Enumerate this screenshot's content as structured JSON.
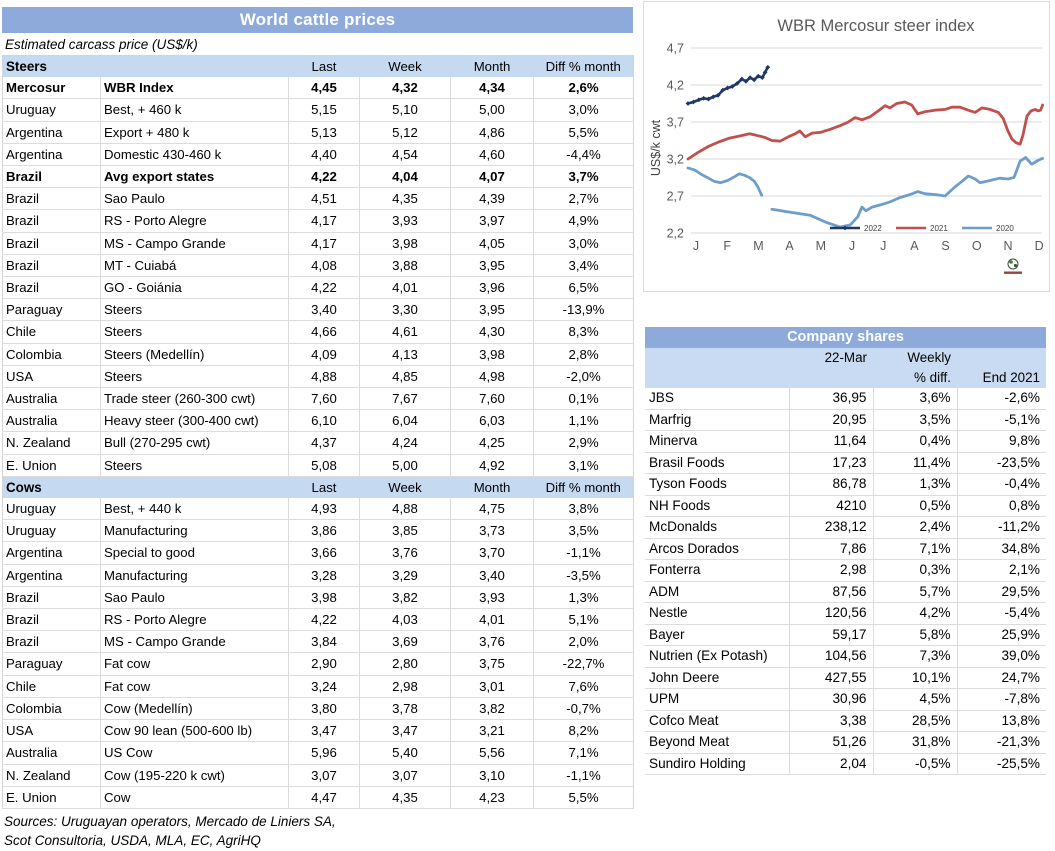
{
  "colors": {
    "title_bar": "#8EAADB",
    "section_header": "#C5D9F0",
    "company_subheader": "#C9DBF2",
    "grid_line": "#DCDCDC",
    "chart_axis_text": "#595959",
    "series_2022": "#1F3864",
    "series_2021": "#C0504D",
    "series_2020": "#6D9DCB"
  },
  "left_table": {
    "title": "World cattle prices",
    "subtitle": "Estimated carcass price (US$/k)",
    "columns": [
      "Last",
      "Week",
      "Month",
      "Diff % month"
    ],
    "sections": [
      {
        "label": "Steers",
        "rows": [
          {
            "country": "Mercosur",
            "desc": "WBR Index",
            "last": "4,45",
            "week": "4,32",
            "month": "4,34",
            "diff": "2,6%",
            "bold": true
          },
          {
            "country": "Uruguay",
            "desc": "Best, + 460 k",
            "last": "5,15",
            "week": "5,10",
            "month": "5,00",
            "diff": "3,0%",
            "bold": false
          },
          {
            "country": "Argentina",
            "desc": "Export + 480 k",
            "last": "5,13",
            "week": "5,12",
            "month": "4,86",
            "diff": "5,5%",
            "bold": false
          },
          {
            "country": "Argentina",
            "desc": "Domestic 430-460 k",
            "last": "4,40",
            "week": "4,54",
            "month": "4,60",
            "diff": "-4,4%",
            "bold": false
          },
          {
            "country": "Brazil",
            "desc": "Avg export states",
            "last": "4,22",
            "week": "4,04",
            "month": "4,07",
            "diff": "3,7%",
            "bold": true
          },
          {
            "country": "Brazil",
            "desc": "Sao Paulo",
            "last": "4,51",
            "week": "4,35",
            "month": "4,39",
            "diff": "2,7%",
            "bold": false
          },
          {
            "country": "Brazil",
            "desc": "RS - Porto Alegre",
            "last": "4,17",
            "week": "3,93",
            "month": "3,97",
            "diff": "4,9%",
            "bold": false
          },
          {
            "country": "Brazil",
            "desc": "MS - Campo Grande",
            "last": "4,17",
            "week": "3,98",
            "month": "4,05",
            "diff": "3,0%",
            "bold": false
          },
          {
            "country": "Brazil",
            "desc": "MT - Cuiabá",
            "last": "4,08",
            "week": "3,88",
            "month": "3,95",
            "diff": "3,4%",
            "bold": false
          },
          {
            "country": "Brazil",
            "desc": "GO - Goiánia",
            "last": "4,22",
            "week": "4,01",
            "month": "3,96",
            "diff": "6,5%",
            "bold": false
          },
          {
            "country": "Paraguay",
            "desc": "Steers",
            "last": "3,40",
            "week": "3,30",
            "month": "3,95",
            "diff": "-13,9%",
            "bold": false
          },
          {
            "country": "Chile",
            "desc": "Steers",
            "last": "4,66",
            "week": "4,61",
            "month": "4,30",
            "diff": "8,3%",
            "bold": false
          },
          {
            "country": "Colombia",
            "desc": "Steers (Medellín)",
            "last": "4,09",
            "week": "4,13",
            "month": "3,98",
            "diff": "2,8%",
            "bold": false
          },
          {
            "country": "USA",
            "desc": "Steers",
            "last": "4,88",
            "week": "4,85",
            "month": "4,98",
            "diff": "-2,0%",
            "bold": false
          },
          {
            "country": "Australia",
            "desc": "Trade steer (260-300 cwt)",
            "last": "7,60",
            "week": "7,67",
            "month": "7,60",
            "diff": "0,1%",
            "bold": false
          },
          {
            "country": "Australia",
            "desc": "Heavy steer (300-400 cwt)",
            "last": "6,10",
            "week": "6,04",
            "month": "6,03",
            "diff": "1,1%",
            "bold": false
          },
          {
            "country": "N. Zealand",
            "desc": "Bull (270-295 cwt)",
            "last": "4,37",
            "week": "4,24",
            "month": "4,25",
            "diff": "2,9%",
            "bold": false
          },
          {
            "country": "E. Union",
            "desc": "Steers",
            "last": "5,08",
            "week": "5,00",
            "month": "4,92",
            "diff": "3,1%",
            "bold": false
          }
        ]
      },
      {
        "label": "Cows",
        "rows": [
          {
            "country": "Uruguay",
            "desc": "Best, + 440 k",
            "last": "4,93",
            "week": "4,88",
            "month": "4,75",
            "diff": "3,8%",
            "bold": false
          },
          {
            "country": "Uruguay",
            "desc": "Manufacturing",
            "last": "3,86",
            "week": "3,85",
            "month": "3,73",
            "diff": "3,5%",
            "bold": false
          },
          {
            "country": "Argentina",
            "desc": "Special to good",
            "last": "3,66",
            "week": "3,76",
            "month": "3,70",
            "diff": "-1,1%",
            "bold": false
          },
          {
            "country": "Argentina",
            "desc": "Manufacturing",
            "last": "3,28",
            "week": "3,29",
            "month": "3,40",
            "diff": "-3,5%",
            "bold": false
          },
          {
            "country": "Brazil",
            "desc": "Sao Paulo",
            "last": "3,98",
            "week": "3,82",
            "month": "3,93",
            "diff": "1,3%",
            "bold": false
          },
          {
            "country": "Brazil",
            "desc": "RS - Porto Alegre",
            "last": "4,22",
            "week": "4,03",
            "month": "4,01",
            "diff": "5,1%",
            "bold": false
          },
          {
            "country": "Brazil",
            "desc": "MS - Campo Grande",
            "last": "3,84",
            "week": "3,69",
            "month": "3,76",
            "diff": "2,0%",
            "bold": false
          },
          {
            "country": "Paraguay",
            "desc": "Fat cow",
            "last": "2,90",
            "week": "2,80",
            "month": "3,75",
            "diff": "-22,7%",
            "bold": false
          },
          {
            "country": "Chile",
            "desc": "Fat cow",
            "last": "3,24",
            "week": "2,98",
            "month": "3,01",
            "diff": "7,6%",
            "bold": false
          },
          {
            "country": "Colombia",
            "desc": "Cow (Medellín)",
            "last": "3,80",
            "week": "3,78",
            "month": "3,82",
            "diff": "-0,7%",
            "bold": false
          },
          {
            "country": "USA",
            "desc": "Cow 90 lean (500-600 lb)",
            "last": "3,47",
            "week": "3,47",
            "month": "3,21",
            "diff": "8,2%",
            "bold": false
          },
          {
            "country": "Australia",
            "desc": "US Cow",
            "last": "5,96",
            "week": "5,40",
            "month": "5,56",
            "diff": "7,1%",
            "bold": false
          },
          {
            "country": "N. Zealand",
            "desc": "Cow (195-220 k cwt)",
            "last": "3,07",
            "week": "3,07",
            "month": "3,10",
            "diff": "-1,1%",
            "bold": false
          },
          {
            "country": "E. Union",
            "desc": "Cow",
            "last": "4,47",
            "week": "4,35",
            "month": "4,23",
            "diff": "5,5%",
            "bold": false
          }
        ]
      }
    ],
    "sources_line1": "Sources: Uruguayan operators, Mercado de Liniers SA,",
    "sources_line2": "Scot Consultoria, USDA, MLA, EC, AgriHQ"
  },
  "chart_data": {
    "type": "line",
    "title": "WBR Mercosur steer index",
    "ylabel": "US$/k cwt",
    "ylim": [
      2.2,
      4.7
    ],
    "yticks": [
      "2,2",
      "2,7",
      "3,2",
      "3,7",
      "4,2",
      "4,7"
    ],
    "ytick_values": [
      2.2,
      2.7,
      3.2,
      3.7,
      4.2,
      4.7
    ],
    "x_months": [
      "J",
      "F",
      "M",
      "A",
      "M",
      "J",
      "J",
      "A",
      "S",
      "O",
      "N",
      "D"
    ],
    "x_unit": "week of year (0-52)",
    "grid": true,
    "legend_position": "inside-bottom-right",
    "series": [
      {
        "name": "2022",
        "color": "#1F3864",
        "marker": true,
        "width": 2.6,
        "segments": [
          [
            [
              0,
              3.95
            ],
            [
              0.8,
              3.97
            ],
            [
              1.6,
              4.0
            ],
            [
              2.3,
              4.02
            ],
            [
              3,
              4.01
            ],
            [
              3.7,
              4.04
            ],
            [
              4.4,
              4.06
            ],
            [
              5.1,
              4.13
            ],
            [
              5.8,
              4.16
            ],
            [
              6.5,
              4.18
            ],
            [
              7.2,
              4.22
            ],
            [
              7.9,
              4.28
            ],
            [
              8.5,
              4.25
            ],
            [
              9.1,
              4.3
            ],
            [
              9.7,
              4.27
            ],
            [
              10.3,
              4.32
            ],
            [
              10.9,
              4.3
            ],
            [
              11.3,
              4.37
            ],
            [
              11.7,
              4.44
            ]
          ]
        ]
      },
      {
        "name": "2021",
        "color": "#C0504D",
        "marker": false,
        "width": 2.8,
        "segments": [
          [
            [
              0,
              3.2
            ],
            [
              1.5,
              3.29
            ],
            [
              3,
              3.37
            ],
            [
              4.5,
              3.43
            ],
            [
              6,
              3.48
            ],
            [
              7.5,
              3.51
            ],
            [
              9,
              3.54
            ],
            [
              10,
              3.52
            ],
            [
              11.3,
              3.49
            ],
            [
              12.3,
              3.45
            ],
            [
              13.5,
              3.44
            ],
            [
              14.7,
              3.5
            ],
            [
              15.7,
              3.54
            ],
            [
              16.4,
              3.58
            ],
            [
              17.2,
              3.5
            ],
            [
              18.2,
              3.55
            ],
            [
              19.4,
              3.56
            ],
            [
              20.8,
              3.6
            ],
            [
              22.3,
              3.65
            ],
            [
              23.5,
              3.7
            ],
            [
              24.5,
              3.76
            ],
            [
              25.5,
              3.73
            ],
            [
              26.7,
              3.77
            ],
            [
              27.9,
              3.85
            ],
            [
              28.9,
              3.92
            ],
            [
              29.6,
              3.89
            ],
            [
              30.6,
              3.95
            ],
            [
              31.8,
              3.97
            ],
            [
              32.8,
              3.93
            ],
            [
              33.7,
              3.81
            ],
            [
              34.8,
              3.84
            ],
            [
              36.2,
              3.86
            ],
            [
              37.7,
              3.87
            ],
            [
              38.7,
              3.9
            ],
            [
              39.9,
              3.9
            ],
            [
              41.1,
              3.86
            ],
            [
              42.1,
              3.83
            ],
            [
              43.1,
              3.89
            ],
            [
              44.3,
              3.87
            ],
            [
              45.5,
              3.83
            ],
            [
              46.2,
              3.75
            ],
            [
              46.9,
              3.58
            ],
            [
              47.5,
              3.47
            ],
            [
              48.1,
              3.42
            ],
            [
              48.7,
              3.4
            ],
            [
              49.1,
              3.52
            ],
            [
              49.7,
              3.78
            ],
            [
              50.3,
              3.85
            ],
            [
              50.9,
              3.87
            ],
            [
              51.3,
              3.85
            ],
            [
              51.7,
              3.86
            ],
            [
              52,
              3.93
            ]
          ]
        ]
      },
      {
        "name": "2020",
        "color": "#6D9DCB",
        "marker": false,
        "width": 2.8,
        "segments": [
          [
            [
              0,
              3.08
            ],
            [
              1,
              3.05
            ],
            [
              2,
              2.99
            ],
            [
              3,
              2.94
            ],
            [
              3.8,
              2.9
            ],
            [
              4.8,
              2.88
            ],
            [
              5.8,
              2.91
            ],
            [
              6.8,
              2.96
            ],
            [
              7.5,
              3.0
            ],
            [
              8.3,
              2.98
            ],
            [
              9,
              2.95
            ],
            [
              9.7,
              2.9
            ],
            [
              10.2,
              2.83
            ],
            [
              10.8,
              2.71
            ]
          ],
          [
            [
              12.3,
              2.52
            ],
            [
              15,
              2.48
            ],
            [
              17.9,
              2.44
            ],
            [
              20.1,
              2.35
            ],
            [
              22.3,
              2.28
            ],
            [
              23.8,
              2.31
            ],
            [
              24.9,
              2.42
            ],
            [
              25.5,
              2.55
            ],
            [
              26.1,
              2.5
            ],
            [
              27,
              2.55
            ],
            [
              28.2,
              2.58
            ],
            [
              29.6,
              2.62
            ],
            [
              31.1,
              2.68
            ],
            [
              32.6,
              2.72
            ],
            [
              33.7,
              2.76
            ],
            [
              34.8,
              2.73
            ],
            [
              36.2,
              2.72
            ],
            [
              37.7,
              2.7
            ],
            [
              39.1,
              2.82
            ],
            [
              40.2,
              2.9
            ],
            [
              41.1,
              2.97
            ],
            [
              42.1,
              2.93
            ],
            [
              42.8,
              2.88
            ],
            [
              44.3,
              2.91
            ],
            [
              45.7,
              2.94
            ],
            [
              46.9,
              2.93
            ],
            [
              47.8,
              2.95
            ],
            [
              48.7,
              3.17
            ],
            [
              49.5,
              3.22
            ],
            [
              50.4,
              3.13
            ],
            [
              51.3,
              3.18
            ],
            [
              52,
              3.21
            ]
          ]
        ]
      }
    ],
    "footer_icon": "globe-logo"
  },
  "company_table": {
    "title": "Company shares",
    "header": {
      "date": "22-Mar",
      "weekly_line1": "Weekly",
      "weekly_line2": "% diff.",
      "end": "End 2021"
    },
    "rows": [
      {
        "name": "JBS",
        "price": "36,95",
        "weekly": "3,6%",
        "end": "-2,6%"
      },
      {
        "name": "Marfrig",
        "price": "20,95",
        "weekly": "3,5%",
        "end": "-5,1%"
      },
      {
        "name": "Minerva",
        "price": "11,64",
        "weekly": "0,4%",
        "end": "9,8%"
      },
      {
        "name": "Brasil Foods",
        "price": "17,23",
        "weekly": "11,4%",
        "end": "-23,5%"
      },
      {
        "name": "Tyson Foods",
        "price": "86,78",
        "weekly": "1,3%",
        "end": "-0,4%"
      },
      {
        "name": "NH Foods",
        "price": "4210",
        "weekly": "0,5%",
        "end": "0,8%"
      },
      {
        "name": "McDonalds",
        "price": "238,12",
        "weekly": "2,4%",
        "end": "-11,2%"
      },
      {
        "name": "Arcos Dorados",
        "price": "7,86",
        "weekly": "7,1%",
        "end": "34,8%"
      },
      {
        "name": "Fonterra",
        "price": "2,98",
        "weekly": "0,3%",
        "end": "2,1%"
      },
      {
        "name": "ADM",
        "price": "87,56",
        "weekly": "5,7%",
        "end": "29,5%"
      },
      {
        "name": "Nestle",
        "price": "120,56",
        "weekly": "4,2%",
        "end": "-5,4%"
      },
      {
        "name": "Bayer",
        "price": "59,17",
        "weekly": "5,8%",
        "end": "25,9%"
      },
      {
        "name": "Nutrien (Ex Potash)",
        "price": "104,56",
        "weekly": "7,3%",
        "end": "39,0%"
      },
      {
        "name": "John Deere",
        "price": "427,55",
        "weekly": "10,1%",
        "end": "24,7%"
      },
      {
        "name": "UPM",
        "price": "30,96",
        "weekly": "4,5%",
        "end": "-7,8%"
      },
      {
        "name": "Cofco Meat",
        "price": "3,38",
        "weekly": "28,5%",
        "end": "13,8%"
      },
      {
        "name": "Beyond Meat",
        "price": "51,26",
        "weekly": "31,8%",
        "end": "-21,3%"
      },
      {
        "name": "Sundiro Holding",
        "price": "2,04",
        "weekly": "-0,5%",
        "end": "-25,5%"
      }
    ]
  }
}
